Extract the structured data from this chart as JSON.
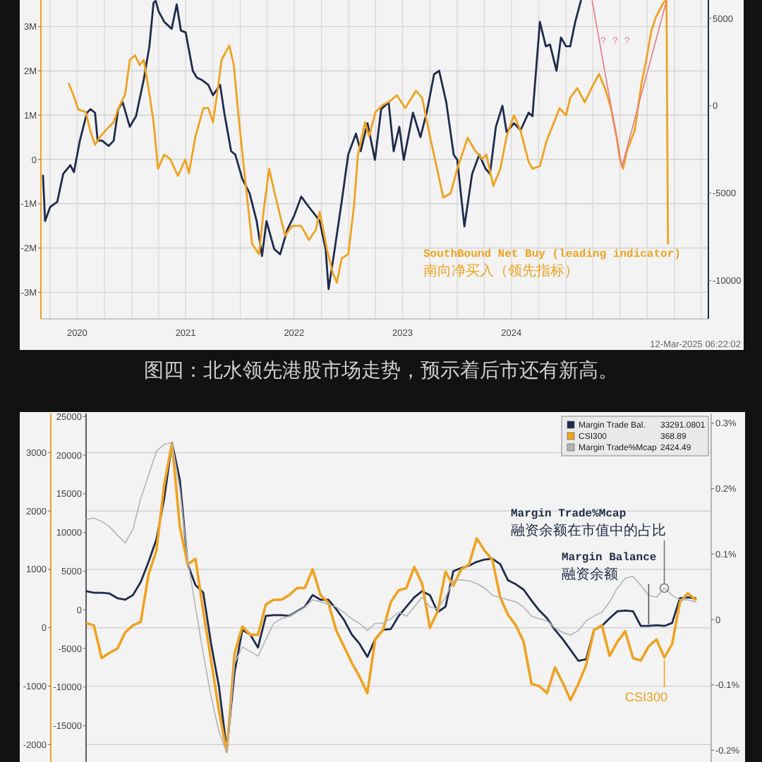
{
  "chart_data": [
    {
      "type": "line",
      "series": [
        {
          "color": "#1e2b4d",
          "axis": "y2",
          "x": [
            "2020-03-08",
            "2020-03-15",
            "2020-04-01",
            "2020-04-25",
            "2020-05-15",
            "2020-06-08",
            "2020-06-20",
            "2020-07-10",
            "2020-08-03",
            "2020-08-15",
            "2020-08-30",
            "2020-09-08",
            "2020-09-23",
            "2020-10-15",
            "2020-11-01",
            "2020-11-16",
            "2020-12-01",
            "2020-12-25",
            "2021-01-15",
            "2021-02-10",
            "2021-03-01",
            "2021-03-15",
            "2021-03-22",
            "2021-04-01",
            "2021-04-20",
            "2021-05-15",
            "2021-06-01",
            "2021-06-15",
            "2021-07-01",
            "2021-07-25",
            "2021-08-08",
            "2021-08-22",
            "2021-09-15",
            "2021-10-01",
            "2021-10-25",
            "2021-11-08",
            "2021-12-01",
            "2021-12-15",
            "2022-01-08",
            "2022-02-01",
            "2022-02-25",
            "2022-03-15",
            "2022-03-30",
            "2022-04-25",
            "2022-05-15",
            "2022-06-08",
            "2022-07-01",
            "2022-07-25",
            "2022-08-20",
            "2022-09-12",
            "2022-09-25",
            "2022-10-15",
            "2022-10-25",
            "2022-11-12",
            "2022-12-08",
            "2022-12-30",
            "2023-01-25",
            "2023-02-10",
            "2023-03-05",
            "2023-03-30",
            "2023-04-20",
            "2023-05-15",
            "2023-06-01",
            "2023-06-20",
            "2023-07-05",
            "2023-08-05",
            "2023-08-30",
            "2023-09-20",
            "2023-10-15",
            "2023-11-01",
            "2023-11-25",
            "2023-12-20",
            "2024-01-01",
            "2024-01-25",
            "2024-02-20",
            "2024-03-15",
            "2024-04-05",
            "2024-04-20",
            "2024-05-10",
            "2024-06-01",
            "2024-06-15",
            "2024-07-10",
            "2024-08-01",
            "2024-08-28",
            "2024-09-10",
            "2024-10-05",
            "2024-10-25",
            "2024-11-08",
            "2024-11-30",
            "2024-12-15",
            "2025-01-01",
            "2025-01-15",
            "2025-02-01",
            "2025-02-20"
          ],
          "values": [
            -4000,
            -6600,
            -5800,
            -5500,
            -3900,
            -3400,
            -3800,
            -2000,
            -400,
            -200,
            -400,
            -2000,
            -2000,
            -2300,
            -2000,
            -200,
            200,
            -1200,
            -600,
            1500,
            3400,
            5900,
            6000,
            5400,
            4800,
            4400,
            5800,
            4300,
            4200,
            2000,
            1600,
            1500,
            1200,
            600,
            1200,
            -400,
            -2600,
            -2800,
            -4200,
            -5000,
            -6600,
            -8600,
            -6600,
            -8200,
            -8500,
            -7100,
            -6300,
            -5200,
            -5800,
            -6300,
            -6600,
            -8200,
            -10500,
            -8500,
            -5500,
            -2800,
            -1600,
            -2600,
            -1000,
            -3100,
            -200,
            200,
            -2600,
            -1200,
            -3100,
            -400,
            -1800,
            -400,
            1800,
            2000,
            200,
            -2800,
            -3100,
            -6900,
            -3900,
            -2800,
            -3600,
            -3900,
            -1200,
            0,
            -1500,
            -1000,
            -1400,
            -400,
            -600,
            4800,
            3400,
            3500,
            2000,
            3900,
            3400,
            3400,
            4800,
            6000
          ]
        },
        {
          "name": "SouthBound Net Buy (leading indicator)\n南向净买入（领先指标）",
          "color": "#f0a21f",
          "x": [
            "2020-06-03",
            "2020-06-17",
            "2020-07-05",
            "2020-07-30",
            "2020-08-14",
            "2020-08-30",
            "2020-09-17",
            "2020-10-08",
            "2020-11-01",
            "2020-11-15",
            "2020-12-10",
            "2020-12-25",
            "2021-01-12",
            "2021-01-27",
            "2021-02-10",
            "2021-03-01",
            "2021-03-15",
            "2021-03-30",
            "2021-04-20",
            "2021-05-10",
            "2021-06-05",
            "2021-06-30",
            "2021-07-12",
            "2021-08-03",
            "2021-08-30",
            "2021-09-15",
            "2021-10-01",
            "2021-10-15",
            "2021-10-30",
            "2021-11-25",
            "2021-12-10",
            "2021-12-28",
            "2022-01-20",
            "2022-02-10",
            "2022-03-05",
            "2022-03-20",
            "2022-04-08",
            "2022-04-22",
            "2022-05-15",
            "2022-06-01",
            "2022-06-25",
            "2022-07-25",
            "2022-08-20",
            "2022-09-12",
            "2022-09-25",
            "2022-10-20",
            "2022-11-08",
            "2022-11-22",
            "2022-12-08",
            "2022-12-30",
            "2023-01-18",
            "2023-02-01",
            "2023-02-25",
            "2023-03-10",
            "2023-04-01",
            "2023-04-25",
            "2023-05-20",
            "2023-06-12",
            "2023-07-10",
            "2023-08-15",
            "2023-09-05",
            "2023-10-01",
            "2023-10-25",
            "2023-11-15",
            "2023-12-10",
            "2024-01-01",
            "2024-02-05",
            "2024-03-01",
            "2024-03-25",
            "2024-04-08",
            "2024-05-01",
            "2024-05-25",
            "2024-06-15",
            "2024-07-10",
            "2024-08-01",
            "2024-08-28",
            "2024-09-10",
            "2024-10-05",
            "2024-10-28",
            "2024-11-20",
            "2024-12-10",
            "2025-01-01",
            "2025-01-15",
            "2025-02-08",
            "2025-03-05",
            "2025-03-30",
            "2025-04-22",
            "2025-05-15",
            "2025-06-01",
            "2025-06-20",
            "2025-07-01",
            "2025-07-12",
            "2025-07-25",
            "2025-08-20",
            "2025-09-12",
            "2025-09-28",
            "2025-10-15",
            "2025-10-30",
            "2025-11-25",
            "2025-12-05",
            "2025-12-10"
          ],
          "values": [
            1.71,
            1.48,
            1.13,
            1.07,
            0.65,
            0.33,
            0.52,
            0.68,
            0.84,
            1.13,
            1.48,
            2.25,
            2.35,
            2.13,
            2.25,
            1.48,
            0.84,
            -0.21,
            0.11,
            0.01,
            -0.37,
            0,
            -0.31,
            0.52,
            1.16,
            1.16,
            0.84,
            1.48,
            2.25,
            2.57,
            2.13,
            0.84,
            -0.63,
            -1.91,
            -2.14,
            -1.18,
            -0.21,
            -0.63,
            -1.27,
            -1.72,
            -1.5,
            -1.5,
            -1.82,
            -1.59,
            -1.18,
            -2.04,
            -2.56,
            -2.78,
            -2.23,
            -2.14,
            -1.08,
            0.11,
            0.84,
            0.52,
            1.07,
            1.23,
            1.32,
            1.45,
            1.16,
            1.55,
            1.39,
            0.52,
            -0.21,
            -0.86,
            -0.76,
            -0.21,
            0.49,
            0.2,
            0.01,
            0.11,
            -0.6,
            -0.21,
            0.52,
            1,
            0.65,
            -0.05,
            -0.21,
            -0.15,
            0.43,
            0.81,
            1.16,
            1,
            1.39,
            1.61,
            1.29,
            1.64,
            1.93,
            1.55,
            1.16,
            0.52,
            0.01,
            -0.21,
            0.2,
            0.65,
            1.71,
            2.25,
            2.89,
            3.21,
            3.54,
            3.6,
            -1.9
          ]
        },
        {
          "color": "#e8788a",
          "axis": "y2",
          "x": [
            "2025-03-30",
            "2025-07-08",
            "2025-12-05"
          ],
          "values": [
            6000,
            -3500,
            6000
          ]
        }
      ],
      "xlim": [
        "2020-03-01",
        "2026-04-25"
      ],
      "xticks": [
        {
          "value": "2020-04-01",
          "label": null
        },
        {
          "value": "2020-07-01",
          "label": "2020"
        },
        {
          "value": "2020-10-01",
          "label": null
        },
        {
          "value": "2021-01-01",
          "label": null
        },
        {
          "value": "2021-04-01",
          "label": null
        },
        {
          "value": "2021-07-01",
          "label": "2021"
        },
        {
          "value": "2021-10-01",
          "label": null
        },
        {
          "value": "2022-01-01",
          "label": null
        },
        {
          "value": "2022-04-01",
          "label": null
        },
        {
          "value": "2022-07-01",
          "label": "2022"
        },
        {
          "value": "2022-10-01",
          "label": null
        },
        {
          "value": "2023-01-01",
          "label": null
        },
        {
          "value": "2023-04-01",
          "label": null
        },
        {
          "value": "2023-07-01",
          "label": "2023"
        },
        {
          "value": "2023-10-01",
          "label": null
        },
        {
          "value": "2024-01-01",
          "label": null
        },
        {
          "value": "2024-04-01",
          "label": null
        },
        {
          "value": "2024-07-01",
          "label": "2024"
        },
        {
          "value": "2024-10-01",
          "label": null
        },
        {
          "value": "2025-01-01",
          "label": null
        },
        {
          "value": "2025-04-01",
          "label": null
        },
        {
          "value": "2025-07-01",
          "label": null
        },
        {
          "value": "2025-10-01",
          "label": null
        },
        {
          "value": "2026-01-01",
          "label": null
        },
        {
          "value": "2026-04-01",
          "label": null
        }
      ],
      "ylim": [
        -3.6,
        3.6
      ],
      "yticks": [
        {
          "value": 3,
          "label": "3M"
        },
        {
          "value": 2,
          "label": "2M"
        },
        {
          "value": 1,
          "label": "1M"
        },
        0,
        {
          "value": -1,
          "label": "-1M"
        },
        {
          "value": -2,
          "label": "-2M"
        },
        {
          "value": -3,
          "label": "-3M"
        }
      ],
      "y2lim": [
        -12200,
        6050
      ],
      "y2ticks": [
        5000,
        0,
        -5000,
        -10000
      ],
      "grid": true,
      "annotations": [
        "? ? ?",
        "12-Mar-2025 06:22:02",
        "图四：北水领先港股市场走势，预示着后市还有新高。"
      ]
    },
    {
      "type": "line",
      "categories": [
        null,
        null,
        null,
        null,
        null,
        null,
        null,
        null,
        null,
        null,
        null,
        null,
        null,
        null,
        null,
        null,
        null,
        null,
        null,
        null,
        null,
        null,
        null,
        null,
        null,
        null,
        null,
        null,
        null,
        null,
        null,
        null,
        null,
        null,
        null,
        null,
        null,
        null,
        null,
        null,
        null,
        null,
        null,
        null,
        null,
        null,
        null,
        null,
        null,
        null,
        null,
        null,
        null,
        null,
        null,
        null,
        null,
        null,
        null,
        null,
        null,
        null,
        null,
        null,
        null,
        null,
        null,
        null,
        null,
        null,
        null,
        null,
        null,
        null,
        null,
        null,
        null,
        null,
        null,
        null,
        null
      ],
      "series": [
        {
          "name": "Margin Trade Bal. 33291.0801",
          "color": "#1e2b4d",
          "axis": "y3",
          "values": [
            2400,
            2200,
            2200,
            2100,
            1500,
            1300,
            1900,
            3600,
            6200,
            9100,
            14400,
            21600,
            16800,
            5900,
            3200,
            2200,
            -4400,
            -9900,
            -18100,
            -8100,
            -2600,
            -3200,
            -4900,
            -800,
            -700,
            -700,
            -800,
            -200,
            400,
            1900,
            1300,
            1300,
            100,
            -1300,
            -3200,
            -4400,
            -6100,
            -3800,
            -2600,
            -2500,
            -800,
            400,
            1600,
            2400,
            1900,
            -300,
            400,
            5000,
            5400,
            5700,
            6200,
            6500,
            6600,
            5900,
            3800,
            3300,
            2600,
            1200,
            -100,
            -1100,
            -2600,
            -3800,
            -5200,
            -6600,
            -6400,
            -2600,
            -2100,
            -1100,
            -200,
            -100,
            -200,
            -2100,
            -2100,
            -2000,
            -2100,
            -1700,
            1500,
            1600,
            1500,
            null,
            null
          ]
        },
        {
          "name": "CSI300 368.89",
          "color": "#f0a21f",
          "values": [
            80,
            40,
            -520,
            -430,
            -360,
            -80,
            40,
            100,
            920,
            1320,
            2450,
            3160,
            1730,
            1080,
            1180,
            280,
            -560,
            -1410,
            -2130,
            -440,
            20,
            -120,
            -120,
            400,
            480,
            480,
            560,
            680,
            680,
            1000,
            560,
            430,
            -40,
            -320,
            -600,
            -840,
            -1120,
            -200,
            -40,
            440,
            640,
            680,
            1040,
            760,
            0,
            280,
            960,
            720,
            1000,
            1080,
            1530,
            1320,
            1160,
            520,
            220,
            40,
            -240,
            -960,
            -1000,
            -1120,
            -680,
            -940,
            -1240,
            -960,
            -640,
            -40,
            40,
            -480,
            -240,
            -60,
            -520,
            -560,
            -320,
            -200,
            -510,
            -280,
            440,
            590,
            480,
            null,
            null
          ]
        },
        {
          "name": "Margin Trade%Mcap 2424.49",
          "color": "#b4b4b4",
          "axis": "y2",
          "values": [
            0.153,
            0.155,
            0.15,
            0.142,
            0.129,
            0.117,
            0.138,
            0.185,
            0.221,
            0.257,
            0.268,
            0.27,
            0.199,
            0.091,
            0.019,
            -0.053,
            -0.118,
            -0.171,
            -0.204,
            -0.067,
            -0.042,
            -0.049,
            -0.056,
            -0.031,
            -0.006,
            0.001,
            0.005,
            0.012,
            0.019,
            0.03,
            0.027,
            0.023,
            0.019,
            0.011,
            0.001,
            -0.006,
            -0.017,
            -0.006,
            -0.006,
            0.001,
            0.011,
            0.005,
            0.019,
            0.034,
            0.019,
            0.016,
            0.034,
            0.059,
            0.061,
            0.059,
            0.055,
            0.048,
            0.037,
            0.034,
            0.03,
            0.027,
            0.019,
            0.005,
            0.001,
            -0.002,
            -0.013,
            -0.02,
            -0.024,
            -0.017,
            -0.002,
            0.005,
            0.011,
            0.027,
            0.048,
            0.063,
            0.066,
            0.052,
            0.037,
            0.034,
            0.048,
            0.037,
            0.03,
            0.03,
            0.027,
            null,
            null
          ]
        }
      ],
      "ylim": [
        -2300,
        3670
      ],
      "yticks": [
        3000,
        2000,
        1000,
        0,
        -1000,
        -2000
      ],
      "y3lim": [
        -19700,
        25400
      ],
      "y3ticks": [
        25000,
        20000,
        15000,
        10000,
        5000,
        0,
        -5000,
        -10000,
        -15000
      ],
      "y2lim": [
        -0.218,
        0.315
      ],
      "y2ticks": [
        {
          "value": 0.3,
          "label": "0.3%"
        },
        {
          "value": 0.2,
          "label": "0.2%"
        },
        {
          "value": 0.1,
          "label": "0.1%"
        },
        0,
        {
          "value": -0.1,
          "label": "-0.1%"
        },
        {
          "value": -0.2,
          "label": "-0.2%"
        }
      ],
      "grid": "y",
      "legend": "top right",
      "annotations": [
        "Margin Trade%Mcap\n融资余额在市值中的占比",
        "Margin Balance\n融资余额",
        "CSI300"
      ]
    }
  ]
}
